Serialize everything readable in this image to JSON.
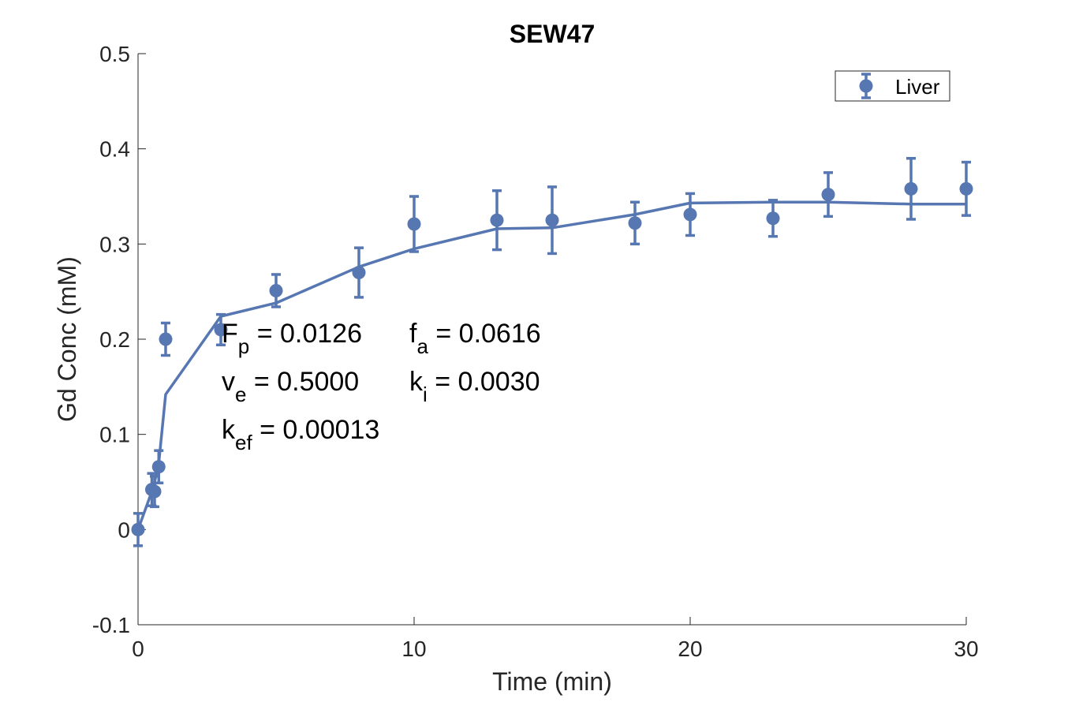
{
  "chart_data": {
    "type": "scatter",
    "title": "SEW47",
    "xlabel": "Time (min)",
    "ylabel": "Gd Conc (mM)",
    "xlim": [
      0,
      30
    ],
    "ylim": [
      -0.1,
      0.5
    ],
    "xticks": [
      0,
      10,
      20,
      30
    ],
    "yticks": [
      -0.1,
      0,
      0.1,
      0.2,
      0.3,
      0.4,
      0.5
    ],
    "xtick_labels": [
      "0",
      "10",
      "20",
      "30"
    ],
    "ytick_labels": [
      "-0.1",
      "0",
      "0.1",
      "0.2",
      "0.3",
      "0.4",
      "0.5"
    ],
    "grid": false,
    "legend_position": "top-right",
    "color": "#5677b1",
    "series": [
      {
        "name": "Liver",
        "kind": "errorbar",
        "x": [
          0,
          0.5,
          0.6,
          0.75,
          1.0,
          3,
          5,
          8,
          10,
          13,
          15,
          18,
          20,
          23,
          25,
          28,
          30
        ],
        "y": [
          0,
          0.042,
          0.04,
          0.066,
          0.2,
          0.21,
          0.251,
          0.27,
          0.321,
          0.325,
          0.325,
          0.322,
          0.331,
          0.327,
          0.352,
          0.358,
          0.358
        ],
        "err": [
          0.017,
          0.017,
          0.016,
          0.017,
          0.017,
          0.016,
          0.017,
          0.026,
          0.029,
          0.031,
          0.035,
          0.022,
          0.022,
          0.019,
          0.023,
          0.032,
          0.028
        ]
      },
      {
        "kind": "fit-line",
        "x": [
          0,
          0.5,
          0.6,
          0.75,
          1.0,
          3,
          5,
          8,
          10,
          13,
          15,
          18,
          20,
          23,
          25,
          28,
          30
        ],
        "y": [
          0,
          0.04,
          0.05,
          0.07,
          0.142,
          0.224,
          0.238,
          0.276,
          0.295,
          0.316,
          0.317,
          0.331,
          0.343,
          0.344,
          0.344,
          0.342,
          0.342
        ]
      }
    ],
    "annotations": [
      [
        {
          "base": "F",
          "sub": "p",
          "text": " = 0.0126"
        },
        {
          "base": "f",
          "sub": "a",
          "text": " = 0.0616"
        }
      ],
      [
        {
          "base": "v",
          "sub": "e",
          "text": " = 0.5000"
        },
        {
          "base": "k",
          "sub": "i",
          "text": " = 0.0030"
        }
      ],
      [
        {
          "base": "k",
          "sub": "ef",
          "text": " = 0.00013"
        }
      ]
    ]
  }
}
